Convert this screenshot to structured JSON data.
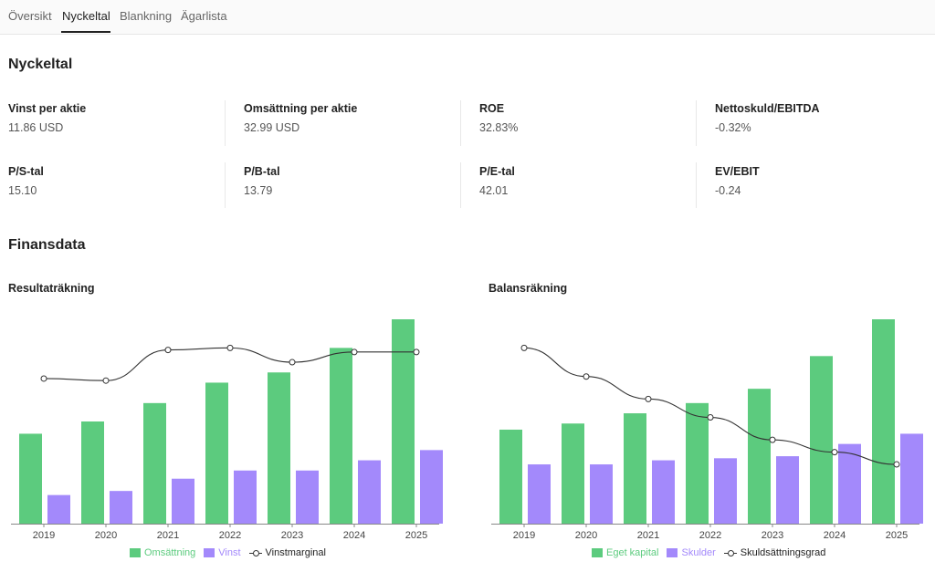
{
  "tabs": [
    {
      "label": "Översikt",
      "active": false
    },
    {
      "label": "Nyckeltal",
      "active": true
    },
    {
      "label": "Blankning",
      "active": false
    },
    {
      "label": "Ägarlista",
      "active": false
    }
  ],
  "nyckeltal": {
    "title": "Nyckeltal",
    "items": [
      {
        "label": "Vinst per aktie",
        "value": "11.86 USD"
      },
      {
        "label": "Omsättning per aktie",
        "value": "32.99 USD"
      },
      {
        "label": "ROE",
        "value": "32.83%"
      },
      {
        "label": "Nettoskuld/EBITDA",
        "value": "-0.32%"
      },
      {
        "label": "P/S-tal",
        "value": "15.10"
      },
      {
        "label": "P/B-tal",
        "value": "13.79"
      },
      {
        "label": "P/E-tal",
        "value": "42.01"
      },
      {
        "label": "EV/EBIT",
        "value": "-0.24"
      }
    ]
  },
  "finansdata": {
    "title": "Finansdata"
  },
  "colors": {
    "green": "#5ccb7e",
    "purple": "#a389fb",
    "line": "#333333",
    "axis": "#888888"
  },
  "chart_data": [
    {
      "type": "bar",
      "title": "Resultaträkning",
      "categories": [
        "2019",
        "2020",
        "2021",
        "2022",
        "2023",
        "2024",
        "2025"
      ],
      "series": [
        {
          "name": "Omsättning",
          "values": [
            0.44,
            0.5,
            0.59,
            0.69,
            0.74,
            0.86,
            1.0
          ],
          "color": "#5ccb7e"
        },
        {
          "name": "Vinst",
          "values": [
            0.14,
            0.16,
            0.22,
            0.26,
            0.26,
            0.31,
            0.36
          ],
          "color": "#a389fb"
        },
        {
          "name": "Vinstmarginal",
          "kind": "line",
          "values": [
            0.71,
            0.7,
            0.85,
            0.86,
            0.79,
            0.84,
            0.84
          ],
          "color": "#333333"
        }
      ],
      "ylim": [
        0,
        1
      ]
    },
    {
      "type": "bar",
      "title": "Balansräkning",
      "categories": [
        "2019",
        "2020",
        "2021",
        "2022",
        "2023",
        "2024",
        "2025"
      ],
      "series": [
        {
          "name": "Eget kapital",
          "values": [
            0.46,
            0.49,
            0.54,
            0.59,
            0.66,
            0.82,
            1.0
          ],
          "color": "#5ccb7e"
        },
        {
          "name": "Skulder",
          "values": [
            0.29,
            0.29,
            0.31,
            0.32,
            0.33,
            0.39,
            0.44
          ],
          "color": "#a389fb"
        },
        {
          "name": "Skuldsättningsgrad",
          "kind": "line",
          "values": [
            0.86,
            0.72,
            0.61,
            0.52,
            0.41,
            0.35,
            0.29
          ],
          "color": "#333333"
        }
      ],
      "ylim": [
        0,
        1
      ]
    }
  ]
}
